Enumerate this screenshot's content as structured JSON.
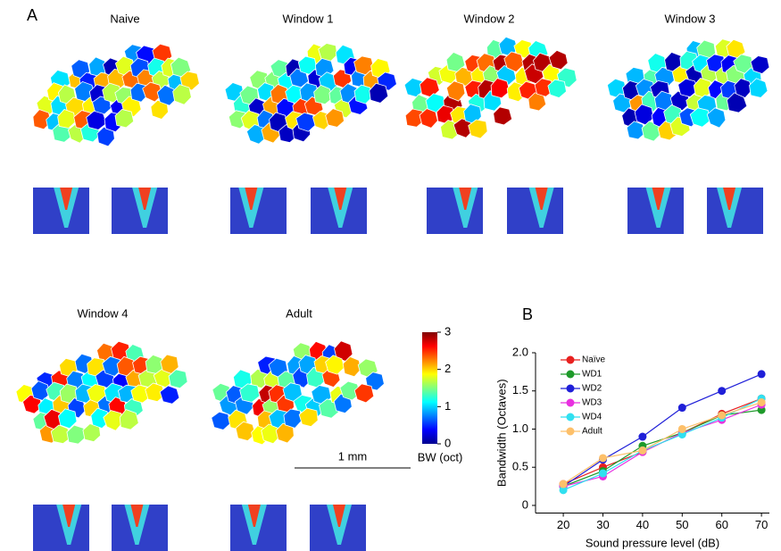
{
  "panel_a": {
    "label": "A",
    "map_titles": [
      "Naive",
      "Window 1",
      "Window 2",
      "Window 3",
      "Window 4",
      "Adult"
    ],
    "colorbar": {
      "label": "BW (oct)",
      "lim": [
        0,
        3
      ],
      "ticks": [
        0,
        1,
        2,
        3
      ]
    },
    "scale_bar": "1 mm"
  },
  "chart_data": {
    "type": "line",
    "panel_label": "B",
    "x_label": "Sound pressure level (dB)",
    "y_label": "Bandwidth (Octaves)",
    "x": [
      20,
      30,
      40,
      50,
      60,
      70
    ],
    "xlim": [
      13,
      72
    ],
    "xticks": [
      20,
      30,
      40,
      50,
      60,
      70
    ],
    "ylim": [
      -0.1,
      2.0
    ],
    "yticks": [
      0,
      0.5,
      {
        "value": 1,
        "label": "1.0"
      },
      1.5,
      {
        "value": 2,
        "label": "2.0"
      }
    ],
    "legend": "upper left",
    "series": [
      {
        "name": "Naïve",
        "color": "#e8201f",
        "values": [
          0.28,
          0.5,
          0.7,
          0.95,
          1.2,
          1.4
        ]
      },
      {
        "name": "WD1",
        "color": "#1e9a2a",
        "values": [
          0.25,
          0.45,
          0.78,
          0.95,
          1.18,
          1.25
        ]
      },
      {
        "name": "WD2",
        "color": "#1f1fd8",
        "values": [
          0.25,
          0.6,
          0.9,
          1.28,
          1.5,
          1.72
        ]
      },
      {
        "name": "WD3",
        "color": "#e830e0",
        "values": [
          0.25,
          0.38,
          0.7,
          0.95,
          1.12,
          1.32
        ]
      },
      {
        "name": "WD4",
        "color": "#30e0f0",
        "values": [
          0.2,
          0.42,
          0.72,
          0.93,
          1.15,
          1.4
        ]
      },
      {
        "name": "Adult",
        "color": "#fdc06a",
        "values": [
          0.28,
          0.62,
          0.72,
          1.0,
          1.18,
          1.35
        ]
      }
    ]
  }
}
